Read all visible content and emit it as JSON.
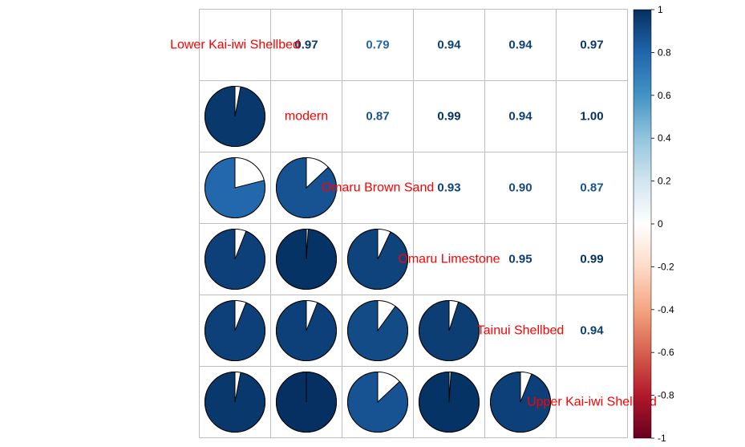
{
  "chart_data": {
    "type": "heatmap",
    "title": "",
    "variables": [
      "Lower Kai-iwi Shellbed",
      "modern",
      "Omaru Brown Sand",
      "Omaru Limestone",
      "Tainui Shellbed",
      "Upper Kai-iwi Shellbed"
    ],
    "matrix": [
      [
        1.0,
        0.97,
        0.79,
        0.94,
        0.94,
        0.97
      ],
      [
        0.97,
        1.0,
        0.87,
        0.99,
        0.94,
        1.0
      ],
      [
        0.79,
        0.87,
        1.0,
        0.93,
        0.9,
        0.87
      ],
      [
        0.94,
        0.99,
        0.93,
        1.0,
        0.95,
        0.99
      ],
      [
        0.94,
        0.94,
        0.9,
        0.95,
        1.0,
        0.94
      ],
      [
        0.97,
        1.0,
        0.87,
        0.99,
        0.94,
        1.0
      ]
    ],
    "upper_display": "number",
    "lower_display": "pie",
    "color_scale": {
      "range": [
        -1,
        1
      ],
      "stops": [
        "#67001f",
        "#b2182b",
        "#d6604d",
        "#f4a582",
        "#fddbc7",
        "#ffffff",
        "#d1e5f0",
        "#92c5de",
        "#4393c3",
        "#2166ac",
        "#053061"
      ]
    },
    "legend": {
      "placement": "right",
      "ticks": [
        "1",
        "0.8",
        "0.6",
        "0.4",
        "0.2",
        "0",
        "-0.2",
        "-0.4",
        "-0.6",
        "-0.8",
        "-1"
      ]
    },
    "grid": true
  }
}
